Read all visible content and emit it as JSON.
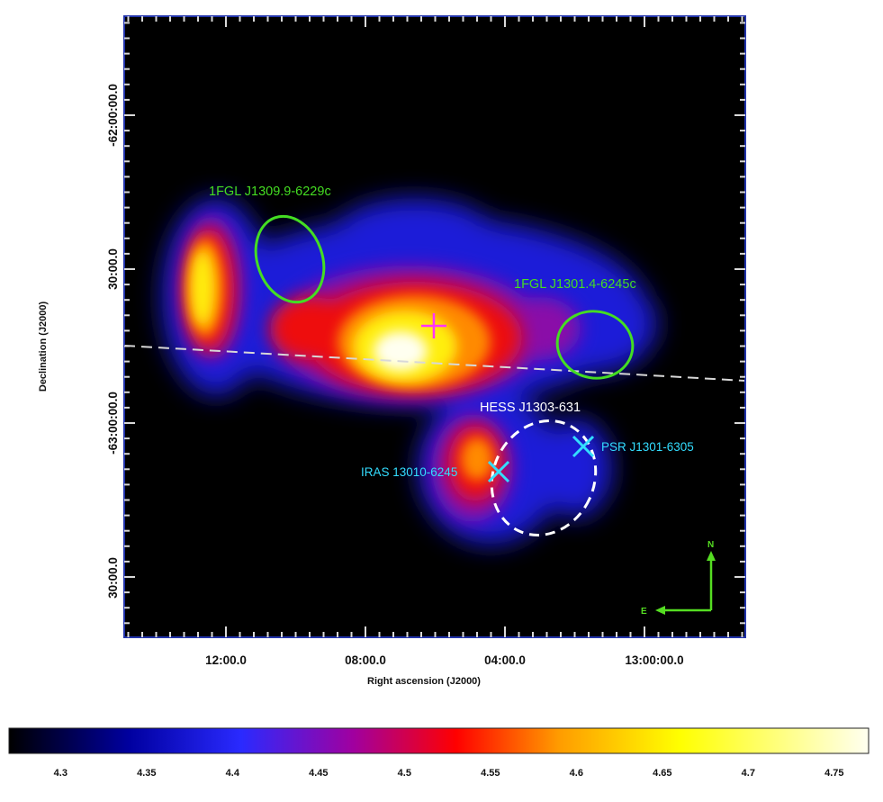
{
  "figure": {
    "xlabel": "Right ascension (J2000)",
    "ylabel": "Declination (J2000)",
    "x_ticks": [
      "12:00.0",
      "08:00.0",
      "04:00.0",
      "13:00:00.0"
    ],
    "y_ticks": [
      "-62:00:00.0",
      "30:00.0",
      "-63:00:00.0",
      "30:00.0"
    ]
  },
  "annotations": {
    "src_1fgl_a": "1FGL J1309.9-6229c",
    "src_1fgl_b": "1FGL J1301.4-6245c",
    "src_hess": "HESS J1303-631",
    "src_iras": "IRAS 13010-6245",
    "src_psr": "PSR J1301-6305",
    "compass_n": "N",
    "compass_e": "E"
  },
  "colors": {
    "fermi_ellipse": "#44dd22",
    "hess_ellipse": "#ffffff",
    "cyan_marker": "#33ddff",
    "centroid_cross": "#ff33ff",
    "frame": "#2233aa",
    "compass": "#55dd22"
  },
  "colorbar": {
    "ticks": [
      "4.3",
      "4.35",
      "4.4",
      "4.45",
      "4.5",
      "4.55",
      "4.6",
      "4.65",
      "4.7",
      "4.75"
    ],
    "range": [
      4.27,
      4.77
    ],
    "stops": [
      "#000000",
      "#0000a0",
      "#2a2aff",
      "#a000a0",
      "#ff0000",
      "#ff9c00",
      "#ffff00",
      "#fffff0"
    ]
  }
}
